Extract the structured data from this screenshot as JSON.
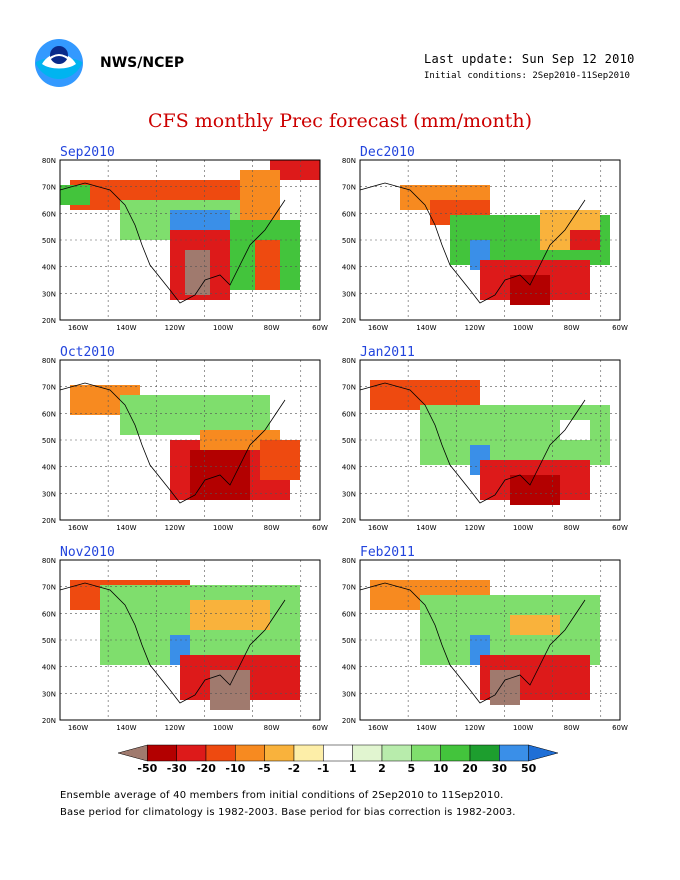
{
  "header": {
    "org": "NWS/NCEP",
    "last_update": "Last update: Sun Sep 12 2010",
    "initial_conditions": "Initial conditions: 2Sep2010-11Sep2010",
    "title": "CFS monthly Prec forecast (mm/month)"
  },
  "panels": [
    {
      "title": "Sep2010"
    },
    {
      "title": "Dec2010"
    },
    {
      "title": "Oct2010"
    },
    {
      "title": "Jan2011"
    },
    {
      "title": "Nov2010"
    },
    {
      "title": "Feb2011"
    }
  ],
  "axes": {
    "lat_labels": [
      "80N",
      "70N",
      "60N",
      "50N",
      "40N",
      "30N",
      "20N"
    ],
    "lon_labels": [
      "160W",
      "140W",
      "120W",
      "100W",
      "80W",
      "60W"
    ]
  },
  "colorbar": {
    "labels": [
      "-50",
      "-30",
      "-20",
      "-10",
      "-5",
      "-2",
      "-1",
      "1",
      "2",
      "5",
      "10",
      "20",
      "30",
      "50"
    ],
    "colors": [
      "#a07a6e",
      "#b30000",
      "#dd1a1a",
      "#ee4a10",
      "#f78a20",
      "#f9b23c",
      "#fdeea8",
      "#ffffff",
      "#e1f5d0",
      "#b8ecac",
      "#7fde6d",
      "#43c43c",
      "#1d9e2e",
      "#3a8fe8",
      "#1f6fd6"
    ]
  },
  "notes": {
    "line1": "Ensemble average of 40 members from initial conditions of 2Sep2010 to 11Sep2010.",
    "line2": "Base period for climatology is 1982-2003. Base period for bias correction is 1982-2003."
  }
}
